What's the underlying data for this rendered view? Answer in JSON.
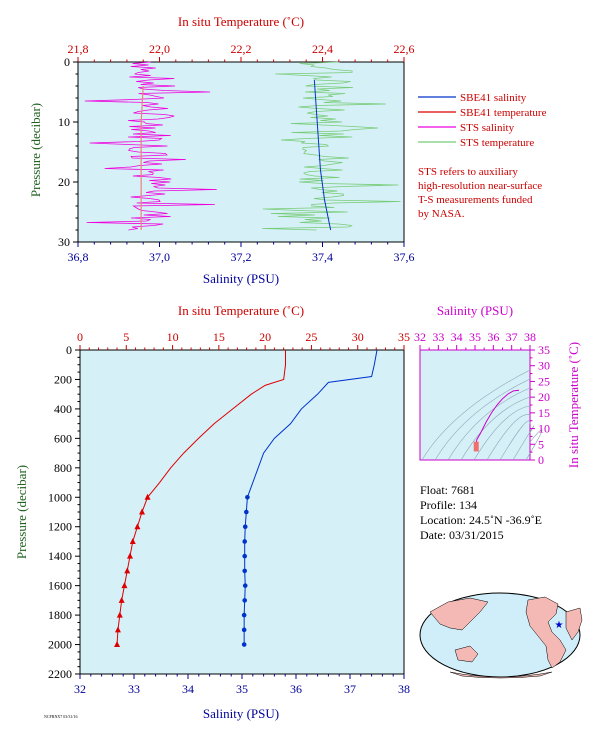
{
  "colors": {
    "panel_bg": "#d6f0f8",
    "temp_axis": "#cc0000",
    "sal_axis": "#000099",
    "pressure_axis": "#1f5f1f",
    "ts_axis": "#cc00cc",
    "sbe_salinity": "#0033cc",
    "sbe_temperature": "#dd0000",
    "sts_salinity": "#ee00dd",
    "sts_temperature": "#77cc77",
    "note": "#cc0000",
    "map_ocean": "#cfeefa",
    "map_land": "#f4b9b4"
  },
  "chart_data": [
    {
      "id": "near-surface",
      "type": "line",
      "top_axis": {
        "label": "In situ Temperature (˚C)",
        "range": [
          21.8,
          22.6
        ],
        "ticks": [
          "21,8",
          "22,0",
          "22,2",
          "22,4",
          "22,6"
        ]
      },
      "bottom_axis": {
        "label": "Salinity (PSU)",
        "range": [
          36.8,
          37.6
        ],
        "ticks": [
          "36,8",
          "37,0",
          "37,2",
          "37,4",
          "37,6"
        ]
      },
      "left_axis": {
        "label": "Pressure (decibar)",
        "range": [
          0,
          30
        ],
        "reversed": true,
        "ticks": [
          "0",
          "10",
          "20",
          "30"
        ]
      },
      "legend": {
        "items": [
          {
            "label": "SBE41 salinity",
            "color": "#0033cc"
          },
          {
            "label": "SBE41 temperature",
            "color": "#dd0000"
          },
          {
            "label": "STS salinity",
            "color": "#ee00dd"
          },
          {
            "label": "STS temperature",
            "color": "#77cc77"
          }
        ],
        "note": [
          "STS refers to auxiliary",
          "high-resolution near-surface",
          "T-S measurements funded",
          "by NASA."
        ]
      },
      "series": [
        {
          "name": "SBE41 salinity",
          "axis": "bottom",
          "points": [
            [
              37.38,
              3
            ],
            [
              37.385,
              8
            ],
            [
              37.39,
              13
            ],
            [
              37.395,
              18
            ],
            [
              37.405,
              23
            ],
            [
              37.42,
              28
            ]
          ]
        },
        {
          "name": "SBE41 temperature",
          "axis": "top",
          "points": [
            [
              21.96,
              4
            ],
            [
              21.955,
              10
            ],
            [
              21.955,
              18
            ],
            [
              21.955,
              28
            ]
          ]
        },
        {
          "name": "STS salinity",
          "axis": "bottom",
          "range": [
            36.8,
            37.15
          ],
          "center": 36.98,
          "pressure_range": [
            0,
            28
          ]
        },
        {
          "name": "STS temperature",
          "axis": "top",
          "range": [
            22.2,
            22.6
          ],
          "center": 22.41,
          "pressure_range": [
            0,
            28
          ]
        }
      ]
    },
    {
      "id": "profile",
      "type": "line",
      "top_axis": {
        "label": "In situ Temperature (˚C)",
        "range": [
          0,
          35
        ],
        "ticks": [
          "0",
          "5",
          "10",
          "15",
          "20",
          "25",
          "30",
          "35"
        ]
      },
      "bottom_axis": {
        "label": "Salinity (PSU)",
        "range": [
          32,
          38
        ],
        "ticks": [
          "32",
          "33",
          "34",
          "35",
          "36",
          "37",
          "38"
        ]
      },
      "left_axis": {
        "label": "Pressure (decibar)",
        "range": [
          0,
          2200
        ],
        "reversed": true,
        "ticks": [
          "0",
          "200",
          "400",
          "600",
          "800",
          "1000",
          "1200",
          "1400",
          "1600",
          "1800",
          "2000",
          "2200"
        ]
      },
      "series": [
        {
          "name": "temperature",
          "axis": "top",
          "points": [
            [
              22.2,
              0
            ],
            [
              22.2,
              100
            ],
            [
              22.0,
              200
            ],
            [
              20.0,
              240
            ],
            [
              18.5,
              300
            ],
            [
              16.5,
              400
            ],
            [
              14.5,
              500
            ],
            [
              12.8,
              600
            ],
            [
              11.2,
              700
            ],
            [
              9.8,
              800
            ],
            [
              8.6,
              900
            ],
            [
              7.3,
              1000
            ],
            [
              6.7,
              1100
            ],
            [
              6.2,
              1200
            ],
            [
              5.7,
              1300
            ],
            [
              5.4,
              1400
            ],
            [
              5.1,
              1500
            ],
            [
              4.8,
              1600
            ],
            [
              4.5,
              1700
            ],
            [
              4.3,
              1800
            ],
            [
              4.1,
              1900
            ],
            [
              4.0,
              2000
            ]
          ]
        },
        {
          "name": "salinity",
          "axis": "bottom",
          "points": [
            [
              37.5,
              0
            ],
            [
              37.45,
              100
            ],
            [
              37.4,
              180
            ],
            [
              36.6,
              220
            ],
            [
              36.4,
              300
            ],
            [
              36.1,
              400
            ],
            [
              35.9,
              500
            ],
            [
              35.6,
              600
            ],
            [
              35.4,
              700
            ],
            [
              35.3,
              800
            ],
            [
              35.2,
              900
            ],
            [
              35.1,
              1000
            ],
            [
              35.08,
              1100
            ],
            [
              35.06,
              1200
            ],
            [
              35.05,
              1300
            ],
            [
              35.05,
              1400
            ],
            [
              35.05,
              1500
            ],
            [
              35.06,
              1600
            ],
            [
              35.05,
              1700
            ],
            [
              35.04,
              1800
            ],
            [
              35.04,
              1900
            ],
            [
              35.04,
              2000
            ]
          ]
        }
      ],
      "marker_from_pressure": 1000
    },
    {
      "id": "ts-diagram",
      "type": "line",
      "x_axis": {
        "label": "Salinity (PSU)",
        "range": [
          32,
          38
        ],
        "ticks": [
          "32",
          "33",
          "34",
          "35",
          "36",
          "37",
          "38"
        ]
      },
      "y_axis": {
        "label": "In situ Temperature (˚C)",
        "range": [
          0,
          35
        ],
        "ticks": [
          "0",
          "5",
          "10",
          "15",
          "20",
          "25",
          "30",
          "35"
        ]
      },
      "series": [
        {
          "name": "T-S",
          "points": [
            [
              35.04,
              4.0
            ],
            [
              35.06,
              5.2
            ],
            [
              35.1,
              6.5
            ],
            [
              35.3,
              8.5
            ],
            [
              35.6,
              12.0
            ],
            [
              35.9,
              15.0
            ],
            [
              36.2,
              17.5
            ],
            [
              36.5,
              19.5
            ],
            [
              36.8,
              21.0
            ],
            [
              37.1,
              22.0
            ],
            [
              37.4,
              22.2
            ]
          ]
        }
      ]
    }
  ],
  "info": {
    "float": "Float:  7681",
    "profile": "Profile:  134",
    "location": "Location:  24.5˚N  -36.9˚E",
    "date": "Date:  03/31/2015"
  },
  "footer": "NCFRNX7  03/31/16"
}
